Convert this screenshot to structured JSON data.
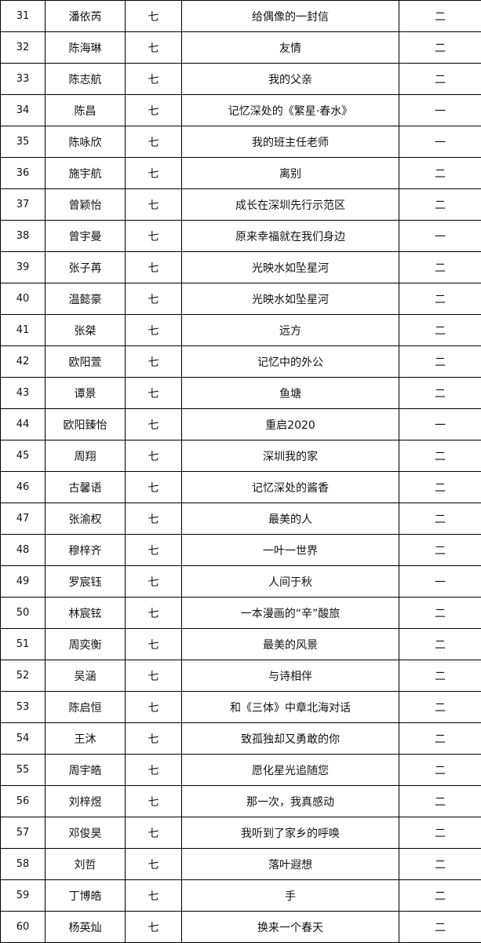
{
  "rows": [
    [
      "31",
      "潘依芮",
      "七",
      "给偶像的一封信",
      "二"
    ],
    [
      "32",
      "陈海琳",
      "七",
      "友情",
      "二"
    ],
    [
      "33",
      "陈志航",
      "七",
      "我的父亲",
      "二"
    ],
    [
      "34",
      "陈昌",
      "七",
      "记忆深处的《繁星·春水》",
      "一"
    ],
    [
      "35",
      "陈咏欣",
      "七",
      "我的班主任老师",
      "一"
    ],
    [
      "36",
      "施宇航",
      "七",
      "离别",
      "二"
    ],
    [
      "37",
      "曾颖怡",
      "七",
      "成长在深圳先行示范区",
      "二"
    ],
    [
      "38",
      "曾宇曼",
      "七",
      "原来幸福就在我们身边",
      "一"
    ],
    [
      "39",
      "张子苒",
      "七",
      "光映水如坠星河",
      "二"
    ],
    [
      "40",
      "温懿豪",
      "七",
      "光映水如坠星河",
      "二"
    ],
    [
      "41",
      "张桀",
      "七",
      "远方",
      "二"
    ],
    [
      "42",
      "欧阳萱",
      "七",
      "记忆中的外公",
      "二"
    ],
    [
      "43",
      "谭景",
      "七",
      "鱼塘",
      "二"
    ],
    [
      "44",
      "欧阳臻怡",
      "七",
      "重启2020",
      "一"
    ],
    [
      "45",
      "周翔",
      "七",
      "深圳我的家",
      "二"
    ],
    [
      "46",
      "古馨语",
      "七",
      "记忆深处的酱香",
      "二"
    ],
    [
      "47",
      "张渝权",
      "七",
      "最美的人",
      "二"
    ],
    [
      "48",
      "穆梓齐",
      "七",
      "一叶一世界",
      "二"
    ],
    [
      "49",
      "罗宸钰",
      "七",
      "人间于秋",
      "一"
    ],
    [
      "50",
      "林宸铉",
      "七",
      "一本漫画的“辛”酸旅",
      "二"
    ],
    [
      "51",
      "周奕衡",
      "七",
      "最美的风景",
      "二"
    ],
    [
      "52",
      "吴涵",
      "七",
      "与诗相伴",
      "二"
    ],
    [
      "53",
      "陈启恒",
      "七",
      "和《三体》中章北海对话",
      "二"
    ],
    [
      "54",
      "王沐",
      "七",
      "致孤独却又勇敢的你",
      "二"
    ],
    [
      "55",
      "周宇皓",
      "七",
      "愿化星光追随您",
      "二"
    ],
    [
      "56",
      "刘梓煜",
      "七",
      "那一次，我真感动",
      "二"
    ],
    [
      "57",
      "邓俊昊",
      "七",
      "我听到了家乡的呼唤",
      "二"
    ],
    [
      "58",
      "刘哲",
      "七",
      "落叶遐想",
      "二"
    ],
    [
      "59",
      "丁博皓",
      "七",
      "手",
      "二"
    ],
    [
      "60",
      "杨英灿",
      "七",
      "换来一个春天",
      "二"
    ]
  ]
}
